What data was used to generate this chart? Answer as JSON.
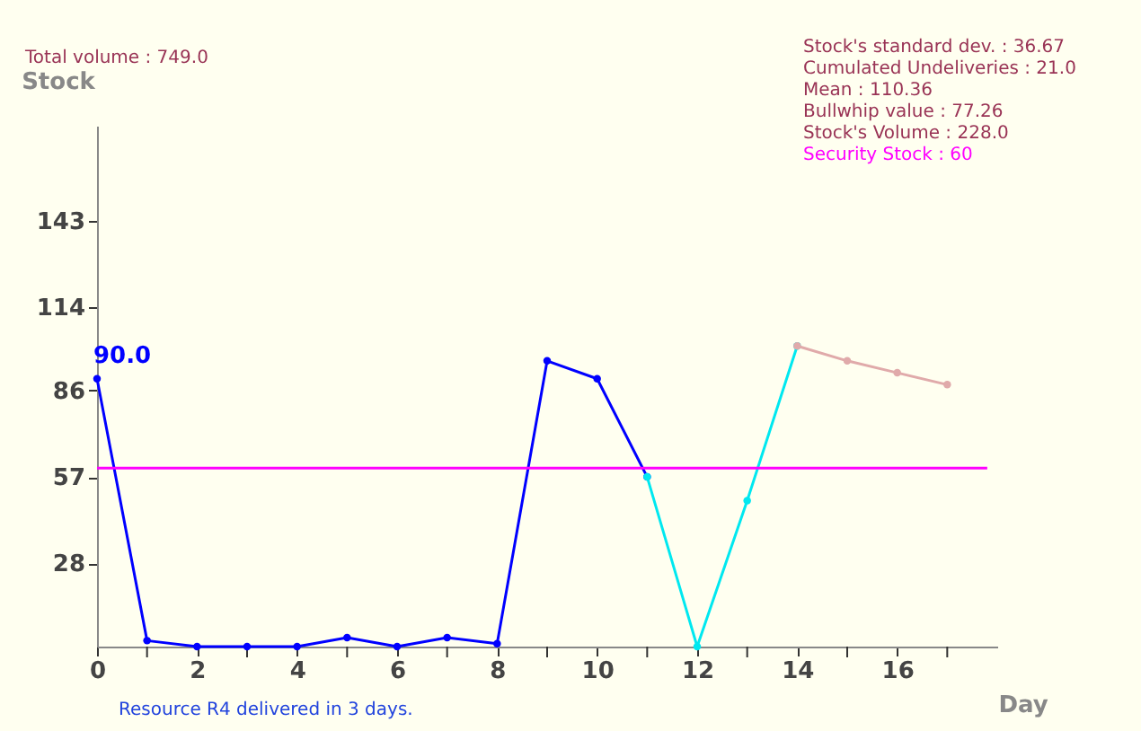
{
  "chart_data": {
    "type": "line",
    "xlabel": "Day",
    "ylabel": "Stock",
    "series": [
      {
        "color": "#0000ff",
        "x": [
          0,
          1,
          2,
          3,
          4,
          5,
          6,
          7,
          8,
          9,
          10,
          11
        ],
        "values": [
          90,
          2,
          0,
          0,
          0,
          3,
          0,
          3,
          1,
          96,
          90,
          57
        ],
        "value_labels": [
          "90.0",
          null,
          null,
          null,
          null,
          null,
          null,
          null,
          null,
          null,
          null,
          null
        ]
      },
      {
        "color": "#00e8f0",
        "x": [
          11,
          12,
          13,
          14
        ],
        "values": [
          57,
          0,
          49,
          101
        ]
      },
      {
        "color": "#e0aaaa",
        "x": [
          14,
          15,
          16,
          17
        ],
        "values": [
          101,
          96,
          92,
          88
        ]
      }
    ],
    "xlim": [
      0,
      18
    ],
    "xticks": [
      0,
      {
        "value": 1,
        "label": null
      },
      2,
      {
        "value": 3,
        "label": null
      },
      4,
      {
        "value": 5,
        "label": null
      },
      6,
      {
        "value": 7,
        "label": null
      },
      8,
      {
        "value": 9,
        "label": null
      },
      10,
      {
        "value": 11,
        "label": null
      },
      12,
      {
        "value": 13,
        "label": null
      },
      14,
      {
        "value": 15,
        "label": null
      },
      16,
      {
        "value": 17,
        "label": null
      }
    ],
    "ylim": [
      0,
      175
    ],
    "yticks": [
      28,
      57,
      86,
      114,
      143
    ],
    "ref_lines": [
      {
        "axis": "y",
        "value": 60,
        "label": "Security Stock : 60",
        "color": "#ff00ff"
      }
    ],
    "annotations": [
      "Total volume : 749.0",
      "Stock's standard dev. : 36.67",
      "Cumulated Undeliveries : 21.0",
      "Mean : 110.36",
      "Bullwhip value : 77.26",
      "Stock's Volume : 228.0",
      "Resource R4 delivered in 3 days."
    ],
    "marker": "circle",
    "grid": false
  }
}
